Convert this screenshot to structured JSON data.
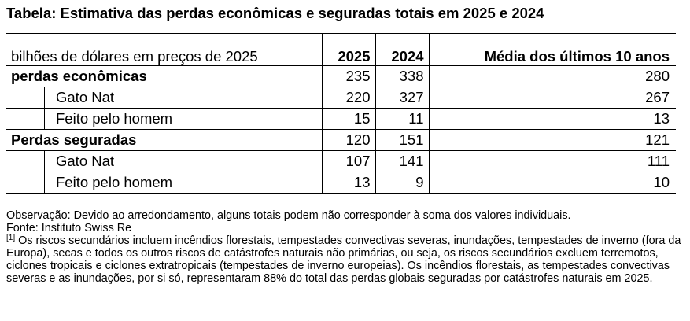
{
  "title": "Tabela: Estimativa das perdas econômicas e seguradas totais em 2025 e 2024",
  "table": {
    "header": {
      "label": "bilhões de dólares em preços de 2025",
      "col_2025": "2025",
      "col_2024": "2024",
      "col_avg": "Média dos últimos 10 anos"
    },
    "rows": [
      {
        "label": "perdas econômicas",
        "v2025": "235",
        "v2024": "338",
        "avg": "280"
      },
      {
        "label": "Gato Nat",
        "v2025": "220",
        "v2024": "327",
        "avg": "267"
      },
      {
        "label": "Feito pelo homem",
        "v2025": "15",
        "v2024": "11",
        "avg": "13"
      },
      {
        "label": "Perdas seguradas",
        "v2025": "120",
        "v2024": "151",
        "avg": "121"
      },
      {
        "label": "Gato Nat",
        "v2025": "107",
        "v2024": "141",
        "avg": "111"
      },
      {
        "label": "Feito pelo homem",
        "v2025": "13",
        "v2024": "9",
        "avg": "10"
      }
    ]
  },
  "notes": {
    "observation": "Observação: Devido ao arredondamento, alguns totais podem não corresponder à soma dos valores individuais.",
    "source": "Fonte: Instituto Swiss Re",
    "footnote_marker": "[1]",
    "footnote_text": " Os riscos secundários incluem incêndios florestais, tempestades convectivas severas, inundações, tempestades de inverno (fora da Europa), secas e todos os outros riscos de catástrofes naturais não primárias, ou seja, os riscos secundários excluem terremotos, ciclones tropicais e ciclones extratropicais (tempestades de inverno europeias). Os incêndios florestais, as tempestades convectivas severas e as inundações, por si só, representaram 88% do total das perdas globais seguradas por catástrofes naturais em 2025."
  }
}
